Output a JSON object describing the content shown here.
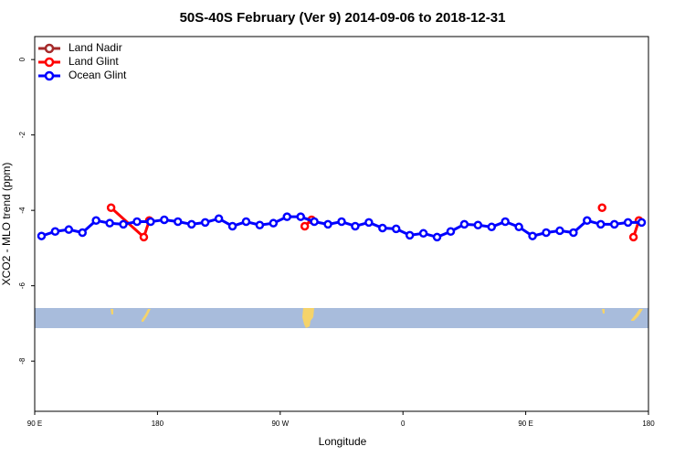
{
  "chart_data": {
    "type": "line",
    "title": "50S-40S February (Ver 9)   2014-09-06 to 2018-12-31",
    "x_label": "Longitude",
    "y_label": "XCO2 - MLO trend (ppm)",
    "xlim": [
      90,
      540
    ],
    "ylim": [
      -9.33,
      0.61
    ],
    "xticks": [
      {
        "value": 90,
        "label": "90 E"
      },
      {
        "value": 180,
        "label": "180"
      },
      {
        "value": 270,
        "label": "90 W"
      },
      {
        "value": 360,
        "label": "0"
      },
      {
        "value": 450,
        "label": "90 E"
      },
      {
        "value": 540,
        "label": "180"
      }
    ],
    "yticks": [
      0,
      -2,
      -4,
      -6,
      -8
    ],
    "legend": "top-left",
    "series": [
      {
        "name": "Land Nadir",
        "color": "#a52a2a",
        "x": [],
        "values": []
      },
      {
        "name": "Land Glint",
        "color": "#ff0000",
        "x": [
          146,
          170,
          174,
          null,
          288,
          293,
          null,
          506,
          null,
          529,
          533
        ],
        "values": [
          -3.93,
          -4.71,
          -4.27,
          null,
          -4.42,
          -4.25,
          null,
          -3.93,
          null,
          -4.71,
          -4.27
        ]
      },
      {
        "name": "Ocean Glint",
        "color": "#0000ff",
        "x": [
          95,
          105,
          115,
          125,
          135,
          145,
          155,
          165,
          175,
          185,
          195,
          205,
          215,
          225,
          235,
          245,
          255,
          265,
          275,
          285,
          295,
          305,
          315,
          325,
          335,
          345,
          355,
          365,
          375,
          385,
          395,
          405,
          415,
          425,
          435,
          445,
          455,
          465,
          475,
          485,
          495,
          505,
          515,
          525,
          535
        ],
        "values": [
          -4.68,
          -4.56,
          -4.51,
          -4.59,
          -4.27,
          -4.34,
          -4.37,
          -4.3,
          -4.3,
          -4.25,
          -4.3,
          -4.37,
          -4.32,
          -4.22,
          -4.42,
          -4.3,
          -4.39,
          -4.34,
          -4.17,
          -4.17,
          -4.3,
          -4.37,
          -4.3,
          -4.42,
          -4.32,
          -4.47,
          -4.49,
          -4.66,
          -4.61,
          -4.71,
          -4.56,
          -4.37,
          -4.39,
          -4.44,
          -4.3,
          -4.44,
          -4.68,
          -4.59,
          -4.54,
          -4.59,
          -4.27,
          -4.37,
          -4.37,
          -4.32,
          -4.32
        ]
      }
    ]
  }
}
